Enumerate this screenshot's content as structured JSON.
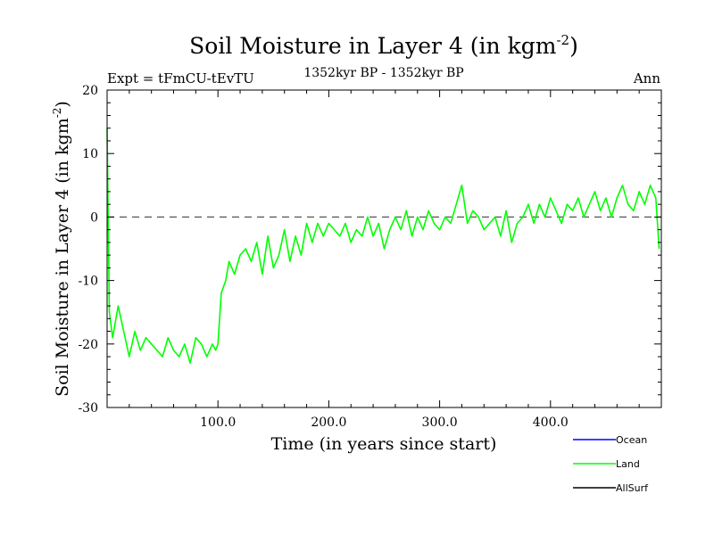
{
  "chart_data": {
    "type": "line",
    "title": "Soil Moisture in Layer 4 (in kgm",
    "title_sup": "-2",
    "title_close": ")",
    "subtitle_left": "Expt = tFmCU-tEvTU",
    "subtitle_center": "1352kyr BP - 1352kyr BP",
    "subtitle_right": "Ann",
    "xlabel": "Time (in years since start)",
    "ylabel": "Soil Moisture in Layer 4 (in kgm",
    "ylabel_sup": "-2",
    "ylabel_close": ")",
    "xlim": [
      0,
      500
    ],
    "ylim": [
      -30,
      20
    ],
    "x_ticks": [
      100,
      200,
      300,
      400
    ],
    "x_tick_labels": [
      "100.0",
      "200.0",
      "300.0",
      "400.0"
    ],
    "y_ticks": [
      20,
      10,
      0,
      -10,
      -20,
      -30
    ],
    "y_tick_labels": [
      "20",
      "10",
      "0",
      "-10",
      "-20",
      "-30"
    ],
    "reference_line": 0,
    "colors": {
      "ocean": "#0000ff",
      "land": "#00ff00",
      "allsurf": "#000000",
      "reference": "#555555"
    },
    "series": [
      {
        "name": "Ocean",
        "color": "#0000ff",
        "values": []
      },
      {
        "name": "Land",
        "color": "#00ff00",
        "x": [
          0,
          2,
          5,
          10,
          15,
          20,
          25,
          30,
          35,
          40,
          45,
          50,
          55,
          60,
          65,
          70,
          75,
          80,
          85,
          90,
          95,
          98,
          100,
          103,
          107,
          110,
          115,
          120,
          125,
          130,
          135,
          140,
          145,
          150,
          155,
          160,
          165,
          170,
          175,
          180,
          185,
          190,
          195,
          200,
          205,
          210,
          215,
          220,
          225,
          230,
          235,
          240,
          245,
          250,
          255,
          260,
          265,
          270,
          275,
          280,
          285,
          290,
          295,
          300,
          305,
          310,
          315,
          320,
          325,
          330,
          335,
          340,
          345,
          350,
          355,
          360,
          365,
          370,
          375,
          380,
          385,
          390,
          395,
          400,
          405,
          410,
          415,
          420,
          425,
          430,
          435,
          440,
          445,
          450,
          455,
          460,
          465,
          470,
          475,
          480,
          485,
          490,
          495,
          498
        ],
        "values": [
          14,
          -15,
          -19,
          -14,
          -18,
          -22,
          -18,
          -21,
          -19,
          -20,
          -21,
          -22,
          -19,
          -21,
          -22,
          -20,
          -23,
          -19,
          -20,
          -22,
          -20,
          -21,
          -20,
          -12,
          -10,
          -7,
          -9,
          -6,
          -5,
          -7,
          -4,
          -9,
          -3,
          -8,
          -6,
          -2,
          -7,
          -3,
          -6,
          -1,
          -4,
          -1,
          -3,
          -1,
          -2,
          -3,
          -1,
          -4,
          -2,
          -3,
          0,
          -3,
          -1,
          -5,
          -2,
          0,
          -2,
          1,
          -3,
          0,
          -2,
          1,
          -1,
          -2,
          0,
          -1,
          2,
          5,
          -1,
          1,
          0,
          -2,
          -1,
          0,
          -3,
          1,
          -4,
          -1,
          0,
          2,
          -1,
          2,
          0,
          3,
          1,
          -1,
          2,
          1,
          3,
          0,
          2,
          4,
          1,
          3,
          0,
          3,
          5,
          2,
          1,
          4,
          2,
          5,
          3,
          -5
        ]
      },
      {
        "name": "AllSurf",
        "color": "#000000",
        "values": []
      }
    ],
    "legend": [
      "Ocean",
      "Land",
      "AllSurf"
    ],
    "legend_position": "bottom-right",
    "grid": false
  }
}
